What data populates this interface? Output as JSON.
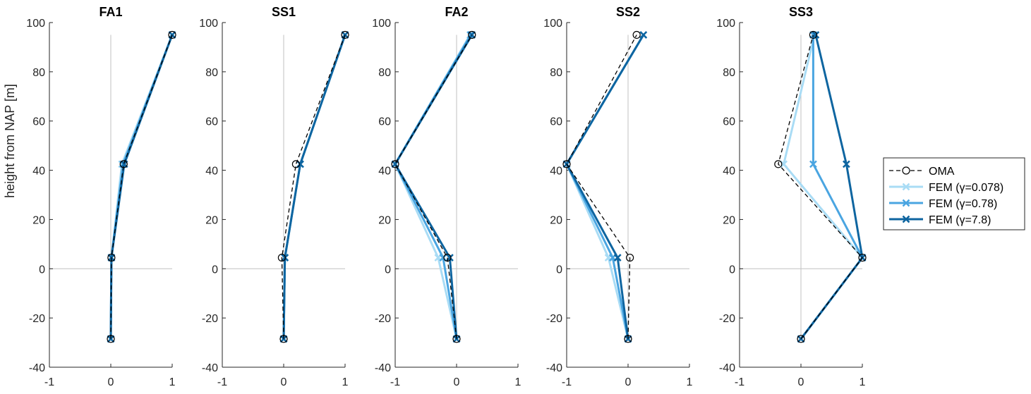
{
  "figure": {
    "ylabel": "height from NAP [m]"
  },
  "chart_data": [
    {
      "type": "line",
      "title": "FA1",
      "xlabel": "",
      "ylabel": "height from NAP [m]",
      "xlim": [
        -1,
        1
      ],
      "ylim": [
        -40,
        100
      ],
      "xticks": [
        -1,
        0,
        1
      ],
      "yticks": [
        -40,
        -20,
        0,
        20,
        40,
        60,
        80,
        100
      ],
      "y": [
        -28.5,
        4.5,
        42.5,
        95
      ],
      "series": [
        {
          "name": "OMA",
          "x": [
            0,
            0.01,
            0.21,
            1.0
          ]
        },
        {
          "name": "FEM (γ=0.078)",
          "x": [
            0,
            0.01,
            0.18,
            1.0
          ]
        },
        {
          "name": "FEM (γ=0.78)",
          "x": [
            0,
            0.01,
            0.2,
            1.0
          ]
        },
        {
          "name": "FEM (γ=7.8)",
          "x": [
            0,
            0.01,
            0.22,
            1.0
          ]
        }
      ]
    },
    {
      "type": "line",
      "title": "SS1",
      "xlabel": "",
      "ylabel": "",
      "xlim": [
        -1,
        1
      ],
      "ylim": [
        -40,
        100
      ],
      "xticks": [
        -1,
        0,
        1
      ],
      "yticks": [
        -40,
        -20,
        0,
        20,
        40,
        60,
        80,
        100
      ],
      "y": [
        -28.5,
        4.5,
        42.5,
        95
      ],
      "series": [
        {
          "name": "OMA",
          "x": [
            0,
            -0.03,
            0.2,
            1.0
          ]
        },
        {
          "name": "FEM (γ=0.078)",
          "x": [
            0,
            0.02,
            0.27,
            1.0
          ]
        },
        {
          "name": "FEM (γ=0.78)",
          "x": [
            0,
            0.02,
            0.27,
            1.0
          ]
        },
        {
          "name": "FEM (γ=7.8)",
          "x": [
            0,
            0.02,
            0.27,
            1.0
          ]
        }
      ]
    },
    {
      "type": "line",
      "title": "FA2",
      "xlabel": "",
      "ylabel": "",
      "xlim": [
        -1,
        1
      ],
      "ylim": [
        -40,
        100
      ],
      "xticks": [
        -1,
        0,
        1
      ],
      "yticks": [
        -40,
        -20,
        0,
        20,
        40,
        60,
        80,
        100
      ],
      "y": [
        -28.5,
        4.5,
        42.5,
        95
      ],
      "series": [
        {
          "name": "OMA",
          "x": [
            0,
            -0.15,
            -1.0,
            0.25
          ]
        },
        {
          "name": "FEM (γ=0.078)",
          "x": [
            0,
            -0.3,
            -1.0,
            0.22
          ]
        },
        {
          "name": "FEM (γ=0.78)",
          "x": [
            0,
            -0.22,
            -1.0,
            0.23
          ]
        },
        {
          "name": "FEM (γ=7.8)",
          "x": [
            0,
            -0.11,
            -1.0,
            0.25
          ]
        }
      ]
    },
    {
      "type": "line",
      "title": "SS2",
      "xlabel": "",
      "ylabel": "",
      "xlim": [
        -1,
        1
      ],
      "ylim": [
        -40,
        100
      ],
      "xticks": [
        -1,
        0,
        1
      ],
      "yticks": [
        -40,
        -20,
        0,
        20,
        40,
        60,
        80,
        100
      ],
      "y": [
        -28.5,
        4.5,
        42.5,
        95
      ],
      "series": [
        {
          "name": "OMA",
          "x": [
            0,
            0.03,
            -1.0,
            0.14
          ]
        },
        {
          "name": "FEM (γ=0.078)",
          "x": [
            0,
            -0.32,
            -1.0,
            0.25
          ]
        },
        {
          "name": "FEM (γ=0.78)",
          "x": [
            0,
            -0.25,
            -1.0,
            0.25
          ]
        },
        {
          "name": "FEM (γ=7.8)",
          "x": [
            0,
            -0.17,
            -1.0,
            0.25
          ]
        }
      ]
    },
    {
      "type": "line",
      "title": "SS3",
      "xlabel": "",
      "ylabel": "",
      "xlim": [
        -1,
        1
      ],
      "ylim": [
        -40,
        100
      ],
      "xticks": [
        -1,
        0,
        1
      ],
      "yticks": [
        -40,
        -20,
        0,
        20,
        40,
        60,
        80,
        100
      ],
      "y": [
        -28.5,
        4.5,
        42.5,
        95
      ],
      "series": [
        {
          "name": "OMA",
          "x": [
            0,
            1.0,
            -0.37,
            0.2
          ]
        },
        {
          "name": "FEM (γ=0.078)",
          "x": [
            0,
            1.0,
            -0.28,
            0.22
          ]
        },
        {
          "name": "FEM (γ=0.78)",
          "x": [
            0,
            1.0,
            0.2,
            0.2
          ]
        },
        {
          "name": "FEM (γ=7.8)",
          "x": [
            0,
            1.0,
            0.74,
            0.24
          ]
        }
      ]
    }
  ],
  "legend": {
    "placement": "right",
    "entries": [
      {
        "label": "OMA",
        "color": "#000000",
        "style": "dashed",
        "marker": "circle"
      },
      {
        "label": "FEM (γ=0.078)",
        "color": "#a9dcf5",
        "style": "solid",
        "marker": "x"
      },
      {
        "label": "FEM (γ=0.78)",
        "color": "#4aa5e1",
        "style": "solid",
        "marker": "x"
      },
      {
        "label": "FEM (γ=7.8)",
        "color": "#0e65a0",
        "style": "solid",
        "marker": "x"
      }
    ]
  },
  "colors": {
    "zero_line": "#c0c0c0",
    "axis": "#262626"
  }
}
